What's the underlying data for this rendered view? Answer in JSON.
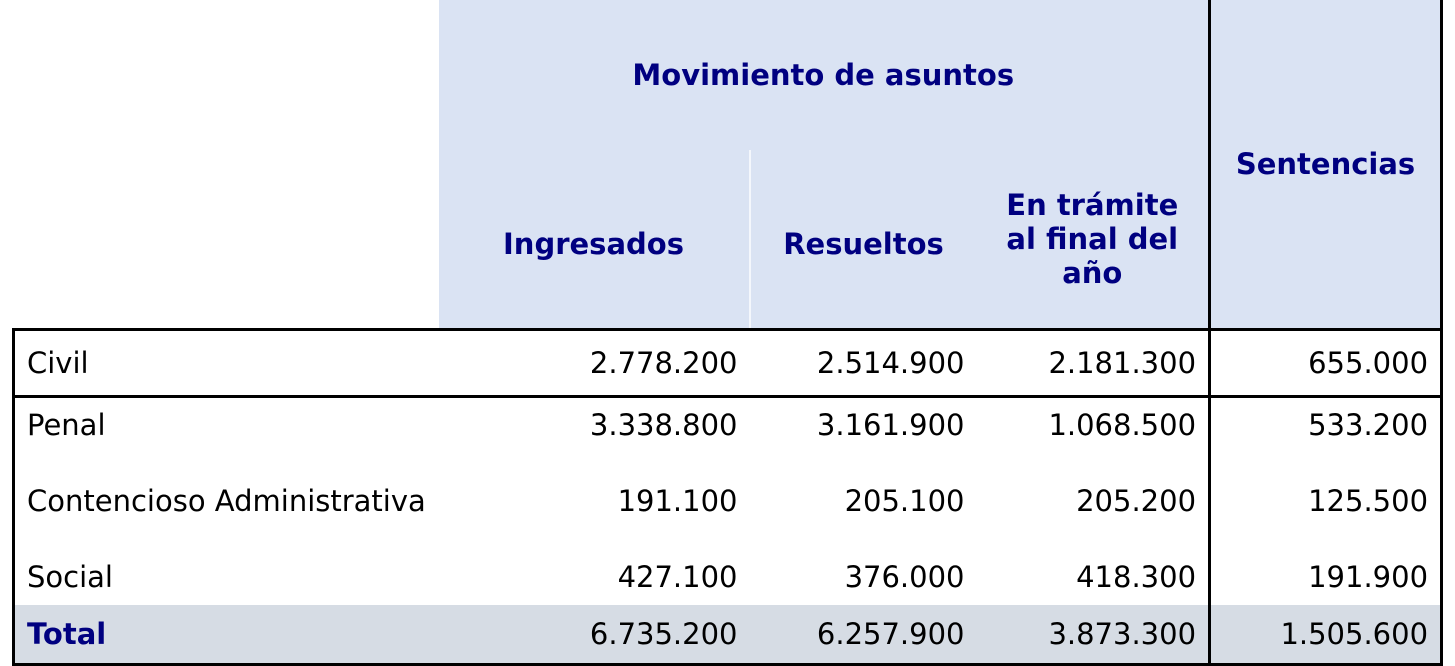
{
  "header": {
    "group": "Movimiento de asuntos",
    "columns": [
      "Ingresados",
      "Resueltos",
      "En trámite al final del año"
    ],
    "last": "Sentencias"
  },
  "rows": [
    [
      "Civil",
      "2.778.200",
      "2.514.900",
      "2.181.300",
      "655.000"
    ],
    [
      "Penal",
      "3.338.800",
      "3.161.900",
      "1.068.500",
      "533.200"
    ],
    [
      "Contencioso Administrativa",
      "191.100",
      "205.100",
      "205.200",
      "125.500"
    ],
    [
      "Social",
      "427.100",
      "376.000",
      "418.300",
      "191.900"
    ],
    [
      "Total",
      "6.735.200",
      "6.257.900",
      "3.873.300",
      "1.505.600"
    ]
  ]
}
